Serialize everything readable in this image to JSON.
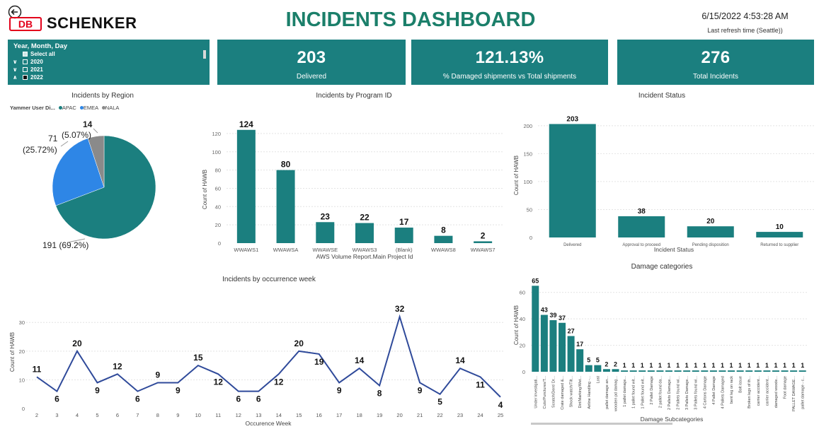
{
  "header": {
    "title": "INCIDENTS DASHBOARD",
    "brand": "SCHENKER",
    "logo_text": "DB",
    "datetime": "6/15/2022 4:53:28 AM",
    "refresh_label": "Last refresh time (Seattle))"
  },
  "slicer": {
    "title": "Year, Month, Day",
    "items": [
      {
        "label": "Select all"
      },
      {
        "label": "2020"
      },
      {
        "label": "2021"
      },
      {
        "label": "2022"
      }
    ]
  },
  "kpis": [
    {
      "value": "203",
      "label": "Delivered"
    },
    {
      "value": "121.13%",
      "label": "% Damaged shipments vs Total shipments"
    },
    {
      "value": "276",
      "label": "Total Incidents"
    }
  ],
  "colors": {
    "teal": "#1b7f7f",
    "emea": "#2e86e6",
    "nala": "#8a8a8a",
    "line": "#2f4a9a"
  },
  "chart_data": [
    {
      "type": "pie",
      "title": "Incidents by Region",
      "legend_title": "Yammer User Di...",
      "categories": [
        "APAC",
        "EMEA",
        "NALA"
      ],
      "values": [
        191,
        71,
        14
      ],
      "labels": [
        "191 (69.2%)",
        "71",
        "(25.72%)",
        "14",
        "(5.07%)"
      ]
    },
    {
      "type": "bar",
      "title": "Incidents by Program ID",
      "xlabel": "AWS Volume Report.Main Project Id",
      "ylabel": "Count of HAWB",
      "categories": [
        "WWAWS1",
        "WWAWSA",
        "WWAWSE",
        "WWAWS3",
        "(Blank)",
        "WWAWS8",
        "WWAWS7"
      ],
      "values": [
        124,
        80,
        23,
        22,
        17,
        8,
        2
      ],
      "yticks": [
        "0",
        "20",
        "40",
        "60",
        "80",
        "100",
        "120"
      ],
      "ylim": [
        0,
        130
      ]
    },
    {
      "type": "bar",
      "title": "Incident Status",
      "xlabel": "Incident Status",
      "ylabel": "Count of HAWB",
      "categories": [
        "Delivered",
        "Approval to proceed",
        "Pending disposition",
        "Returned to supplier"
      ],
      "values": [
        203,
        38,
        20,
        10
      ],
      "yticks": [
        "0",
        "50",
        "100",
        "150",
        "200"
      ],
      "ylim": [
        0,
        215
      ]
    },
    {
      "type": "line",
      "title": "Incidents by occurrence week",
      "xlabel": "Occurence Week",
      "ylabel": "Count of HAWB",
      "x": [
        "2",
        "3",
        "4",
        "5",
        "6",
        "7",
        "8",
        "9",
        "10",
        "11",
        "12",
        "13",
        "14",
        "15",
        "16",
        "17",
        "18",
        "19",
        "20",
        "21",
        "22",
        "23",
        "24",
        "25"
      ],
      "values": [
        11,
        6,
        20,
        9,
        12,
        6,
        9,
        9,
        15,
        12,
        6,
        6,
        12,
        20,
        19,
        9,
        14,
        8,
        32,
        9,
        5,
        14,
        11,
        4
      ],
      "yticks": [
        "0",
        "10",
        "20",
        "30"
      ],
      "ylim": [
        0,
        34
      ]
    },
    {
      "type": "bar",
      "title": "Damage categories",
      "xlabel": "Damage Subcategories",
      "ylabel": "Count of HAWB",
      "categories": [
        "Under investigati...",
        "Cuts/Punctures/T...",
        "Scratch/Dent/ Dr...",
        "Crate damaged &...",
        "Shock watch/Tilt...",
        "Dirt/Marking/Wet...",
        "Airline Handling -...",
        "Lost",
        "pallet damage an...",
        "wooden pd damag...",
        "1 pallet damage...",
        "1 pallet found wit...",
        "1 Pallet found wit...",
        "2 Pallet Damage",
        "2 pallet found da...",
        "2 Pallets Damage...",
        "2 Pallets found wi...",
        "3 Pallets Damage...",
        "3 Pallets found wi...",
        "4 Cartons Damage",
        "4 Pallet Damage",
        "4 Pallets Damaged",
        "bent leg on rack",
        "Bolt issue",
        "Broken legs of th...",
        "carrier accident...",
        "carrier accident...",
        "damaged woode...",
        "Foot damage",
        "PALLET DAMAGE...",
        "pallet damage - c..."
      ],
      "values": [
        65,
        43,
        39,
        37,
        27,
        17,
        5,
        5,
        2,
        2,
        1,
        1,
        1,
        1,
        1,
        1,
        1,
        1,
        1,
        1,
        1,
        1,
        1,
        1,
        1,
        1,
        1,
        1,
        1,
        1,
        1
      ],
      "yticks": [
        "0",
        "20",
        "40",
        "60"
      ],
      "ylim": [
        0,
        70
      ]
    }
  ]
}
